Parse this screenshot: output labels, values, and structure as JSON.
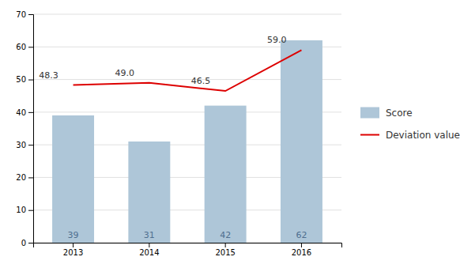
{
  "chart_data": {
    "type": "bar",
    "categories": [
      "2013",
      "2014",
      "2015",
      "2016"
    ],
    "series": [
      {
        "name": "Score",
        "type": "bar",
        "color": "#aec6d8",
        "values": [
          39,
          31,
          42,
          62
        ]
      },
      {
        "name": "Deviation value",
        "type": "line",
        "color": "#dd0000",
        "values": [
          48.3,
          49.0,
          46.5,
          59.0
        ],
        "value_labels": [
          "48.3",
          "49.0",
          "46.5",
          "59.0"
        ]
      }
    ],
    "ylim": [
      0,
      70
    ],
    "yticks": [
      0,
      10,
      20,
      30,
      40,
      50,
      60,
      70
    ],
    "grid": true,
    "data_labels": true,
    "legend": "right"
  }
}
